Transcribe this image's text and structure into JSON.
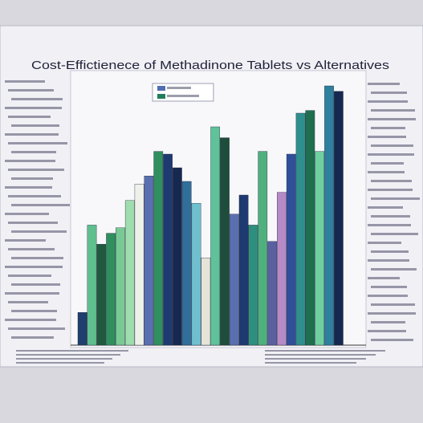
{
  "chart_data": {
    "type": "bar",
    "title": "Cost-Effictienece of Methadinone Tablets vs Alternatives",
    "categories": [
      null,
      null,
      null,
      null,
      null,
      null,
      null,
      null,
      null,
      null,
      null,
      null,
      null,
      null,
      null,
      null,
      null,
      null,
      null,
      null,
      null,
      null,
      null,
      null,
      null,
      null,
      null,
      null
    ],
    "values": [
      12,
      44,
      37,
      41,
      43,
      53,
      59,
      62,
      71,
      70,
      65,
      60,
      52,
      32,
      80,
      76,
      48,
      55,
      44,
      71,
      38,
      56,
      70,
      85,
      86,
      71,
      95,
      93
    ],
    "colors": [
      "#1f3f6e",
      "#5fbf8f",
      "#1f5a3e",
      "#2f8f5e",
      "#79c995",
      "#9fdcae",
      "#eef0ea",
      "#5a6fb0",
      "#2f8f5e",
      "#1e3a70",
      "#16284f",
      "#2f6f9a",
      "#6fbfcf",
      "#e6e3d8",
      "#5fc29a",
      "#1e4d3b",
      "#5a6fb0",
      "#1e3a70",
      "#2f8f7e",
      "#4fb07e",
      "#5a5fa0",
      "#b68ac6",
      "#2f4f9a",
      "#2f8f8e",
      "#1f6f4e",
      "#6fcfa0",
      "#2f7f9e",
      "#16284f"
    ],
    "ylim": [
      0,
      100
    ]
  }
}
